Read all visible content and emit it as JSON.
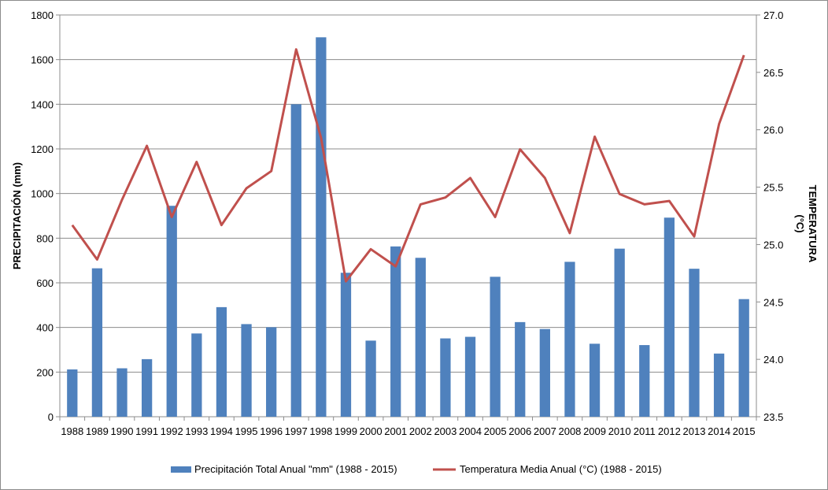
{
  "chart_data": {
    "type": "bar+line",
    "title": "",
    "categories": [
      "1988",
      "1989",
      "1990",
      "1991",
      "1992",
      "1993",
      "1994",
      "1995",
      "1996",
      "1997",
      "1998",
      "1999",
      "2000",
      "2001",
      "2002",
      "2003",
      "2004",
      "2005",
      "2006",
      "2007",
      "2008",
      "2009",
      "2010",
      "2011",
      "2012",
      "2013",
      "2014",
      "2015"
    ],
    "series": [
      {
        "name": "Precipitación Total Anual \"mm\" (1988 - 2015)",
        "type": "bar",
        "axis": "left",
        "color": "#4F81BD",
        "values": [
          212,
          665,
          217,
          258,
          945,
          373,
          491,
          415,
          401,
          1400,
          1700,
          645,
          341,
          763,
          712,
          351,
          358,
          627,
          424,
          393,
          694,
          327,
          753,
          321,
          892,
          663,
          283,
          527
        ]
      },
      {
        "name": "Temperatura Media Anual (°C) (1988 - 2015)",
        "type": "line",
        "axis": "right",
        "color": "#C0504D",
        "values": [
          25.17,
          24.87,
          25.39,
          25.86,
          25.24,
          25.72,
          25.17,
          25.49,
          25.64,
          26.7,
          25.93,
          24.68,
          24.96,
          24.81,
          25.35,
          25.41,
          25.58,
          25.24,
          25.83,
          25.58,
          25.1,
          25.94,
          25.44,
          25.35,
          25.38,
          25.07,
          26.05,
          26.65
        ]
      }
    ],
    "ylabel": "PRECIPITACIÓN (mm)",
    "ylabel_right_line1": "TEMPERATURA",
    "ylabel_right_line2": "(°C)",
    "ylim": [
      0,
      1800
    ],
    "ylim_right": [
      23.5,
      27.0
    ],
    "yticks": [
      "0",
      "200",
      "400",
      "600",
      "800",
      "1000",
      "1200",
      "1400",
      "1600",
      "1800"
    ],
    "yticks_right": [
      "23.5",
      "24.0",
      "24.5",
      "25.0",
      "25.5",
      "26.0",
      "26.5",
      "27.0"
    ],
    "grid": true,
    "legend_position": "bottom"
  }
}
